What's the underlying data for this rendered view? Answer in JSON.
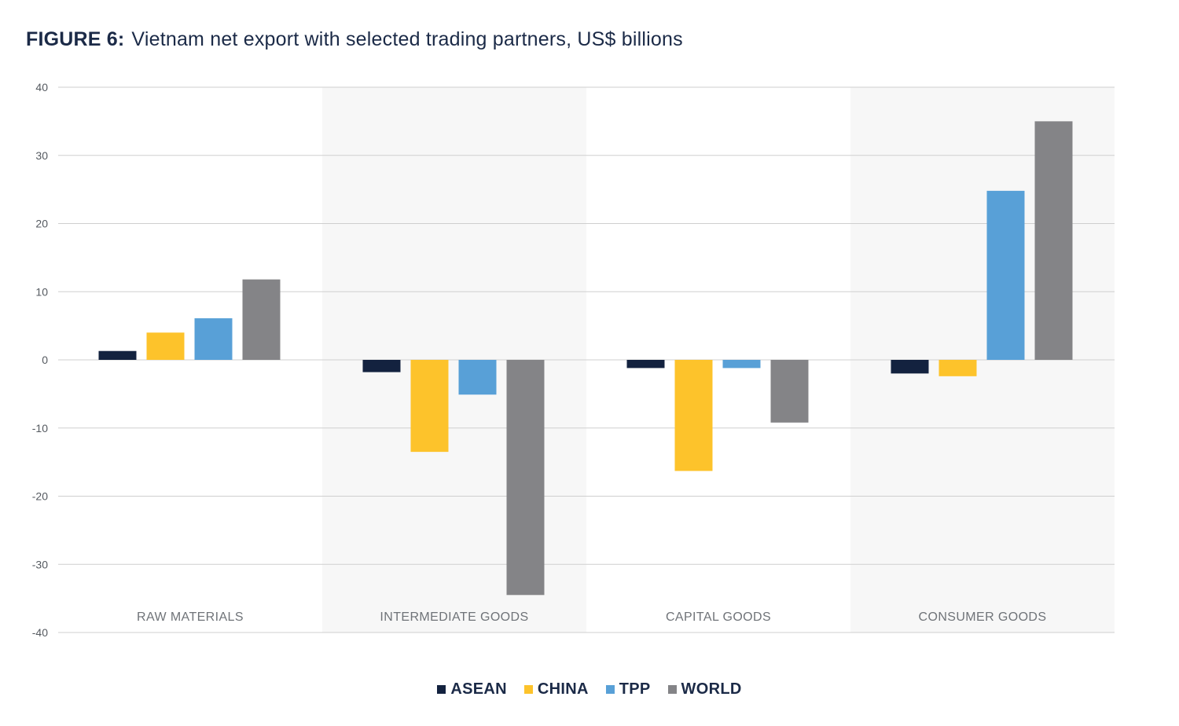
{
  "figure": {
    "label": "FIGURE 6:",
    "title": "Vietnam net export with selected trading partners, US$ billions"
  },
  "chart_data": {
    "type": "bar",
    "title": "Vietnam net export with selected trading partners, US$ billions",
    "xlabel": "",
    "ylabel": "",
    "ylim": [
      -40,
      40
    ],
    "yticks": [
      40,
      30,
      20,
      10,
      0,
      -10,
      -20,
      -30,
      -40
    ],
    "grid": true,
    "legend_position": "bottom-center",
    "categories": [
      "RAW MATERIALS",
      "INTERMEDIATE GOODS",
      "CAPITAL GOODS",
      "CONSUMER GOODS"
    ],
    "series": [
      {
        "name": "ASEAN",
        "color": "#13223f",
        "values": [
          1.3,
          -1.8,
          -1.2,
          -2.0
        ]
      },
      {
        "name": "CHINA",
        "color": "#fdc32b",
        "values": [
          4.0,
          -13.5,
          -16.3,
          -2.4
        ]
      },
      {
        "name": "TPP",
        "color": "#58a0d7",
        "values": [
          6.1,
          -5.1,
          -1.2,
          24.8
        ]
      },
      {
        "name": "WORLD",
        "color": "#848487",
        "values": [
          11.8,
          -34.5,
          -9.2,
          35.0
        ]
      }
    ]
  },
  "colors": {
    "band": "#f7f7f7",
    "grid": "#cfcfcf",
    "title": "#1b2a47"
  }
}
